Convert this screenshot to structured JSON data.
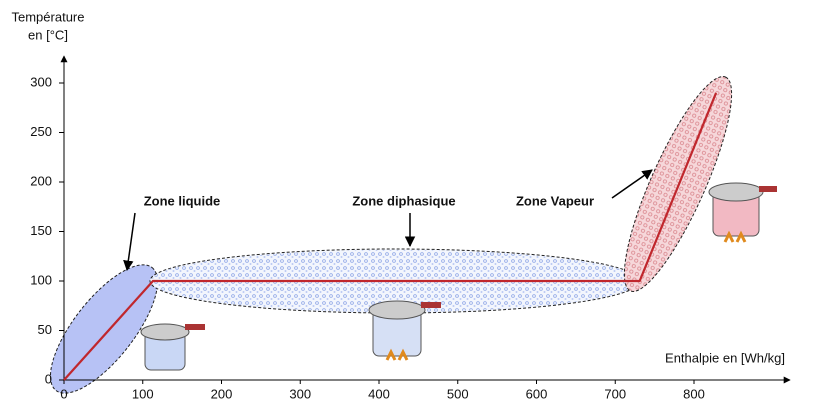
{
  "chart_data": {
    "type": "line",
    "y_label": [
      "Température",
      "en [°C]"
    ],
    "x_label": "Enthalpie en [Wh/kg]",
    "x": [
      0,
      113,
      731,
      828
    ],
    "series": [
      {
        "color": "#c0272d",
        "values": [
          0,
          100,
          100,
          290
        ]
      }
    ],
    "xlim": [
      0,
      920
    ],
    "ylim": [
      0,
      325
    ],
    "xticks": [
      0,
      100,
      200,
      300,
      400,
      500,
      600,
      700,
      800
    ],
    "yticks": [
      0,
      50,
      100,
      150,
      200,
      250,
      300
    ],
    "annotations": [
      "Zone liquide",
      "Zone diphasique",
      "Zone Vapeur"
    ]
  }
}
